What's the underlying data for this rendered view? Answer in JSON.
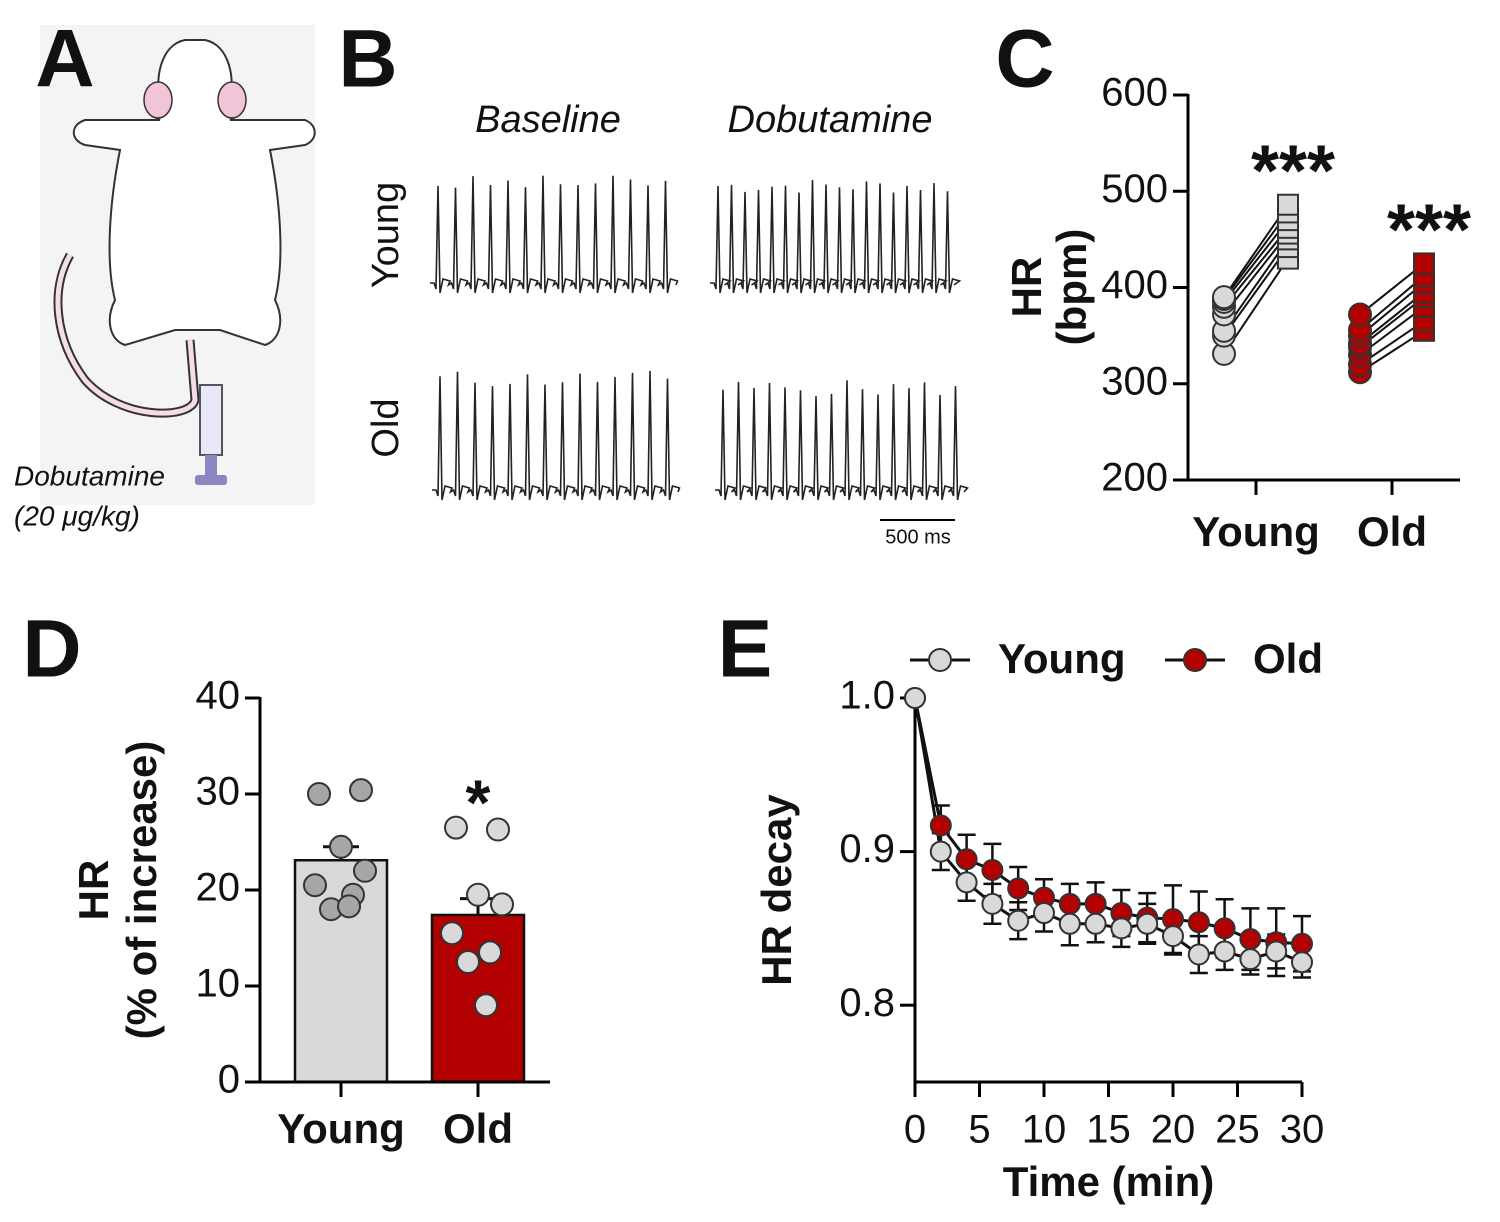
{
  "figure": {
    "panels": [
      "A",
      "B",
      "C",
      "D",
      "E"
    ],
    "illustration": {
      "label": "Dobutamine",
      "dose": "(20 μg/kg)"
    },
    "ecg": {
      "columns": [
        "Baseline",
        "Dobutamine"
      ],
      "rows": [
        "Young",
        "Old"
      ],
      "scale_bar": "500 ms"
    }
  },
  "chart_data": [
    {
      "type": "paired",
      "ylabel": [
        "HR",
        "(bpm)"
      ],
      "categories": [
        "Young",
        "Old"
      ],
      "ylim": [
        200,
        600
      ],
      "yticks": [
        200,
        300,
        400,
        500,
        600
      ],
      "annotations": [
        "***",
        "***"
      ],
      "series": [
        {
          "color": "#d9d9d9",
          "before": [
            331,
            350,
            355,
            372,
            380,
            385,
            388,
            390
          ],
          "after": [
            430,
            442,
            450,
            456,
            462,
            470,
            478,
            486
          ]
        },
        {
          "color": "#b30000",
          "before": [
            312,
            320,
            330,
            338,
            342,
            350,
            356,
            372
          ],
          "after": [
            355,
            365,
            380,
            390,
            395,
            405,
            412,
            425
          ]
        }
      ]
    },
    {
      "type": "bar",
      "ylabel": [
        "HR",
        "(% of increase)"
      ],
      "categories": [
        "Young",
        "Old"
      ],
      "ylim": [
        0,
        40
      ],
      "yticks": [
        0,
        10,
        20,
        30,
        40
      ],
      "values": [
        23.1,
        17.4
      ],
      "errors": [
        1.4,
        1.7
      ],
      "colors": [
        "#d9d9d9",
        "#b30000"
      ],
      "point_colors": [
        "#a6a6a6",
        "#d9d9d9"
      ],
      "points": [
        [
          30,
          30.4,
          24.5,
          22,
          20.5,
          19.5,
          18,
          18.3
        ],
        [
          26.5,
          26.3,
          19.5,
          18.5,
          15.5,
          13.5,
          12.5,
          8
        ]
      ],
      "annotations": [
        "",
        "*"
      ]
    },
    {
      "type": "line",
      "ylabel": "HR decay",
      "xlabel": "Time (min)",
      "xlim": [
        0,
        30
      ],
      "xticks": [
        0,
        5,
        10,
        15,
        20,
        25,
        30
      ],
      "ylim": [
        0.75,
        1.0
      ],
      "yticks": [
        0.8,
        0.9,
        {
          "value": 1.0,
          "label": "1.0"
        }
      ],
      "x": [
        0,
        2,
        4,
        6,
        8,
        10,
        12,
        14,
        16,
        18,
        20,
        22,
        24,
        26,
        28,
        30
      ],
      "series": [
        {
          "name": "Young",
          "color": "#d9d9d9",
          "values": [
            1.0,
            0.9,
            0.88,
            0.866,
            0.855,
            0.86,
            0.853,
            0.853,
            0.85,
            0.853,
            0.845,
            0.833,
            0.835,
            0.83,
            0.835,
            0.828
          ],
          "errors": [
            0,
            0.012,
            0.012,
            0.013,
            0.012,
            0.012,
            0.014,
            0.012,
            0.012,
            0.013,
            0.012,
            0.012,
            0.012,
            0.01,
            0.011,
            0.01
          ]
        },
        {
          "name": "Old",
          "color": "#b30000",
          "values": [
            1.0,
            0.917,
            0.895,
            0.888,
            0.876,
            0.87,
            0.866,
            0.866,
            0.86,
            0.857,
            0.856,
            0.854,
            0.85,
            0.843,
            0.841,
            0.84
          ],
          "errors": [
            0,
            0.013,
            0.016,
            0.017,
            0.014,
            0.012,
            0.013,
            0.014,
            0.015,
            0.016,
            0.022,
            0.02,
            0.019,
            0.02,
            0.022,
            0.018
          ]
        }
      ]
    }
  ]
}
